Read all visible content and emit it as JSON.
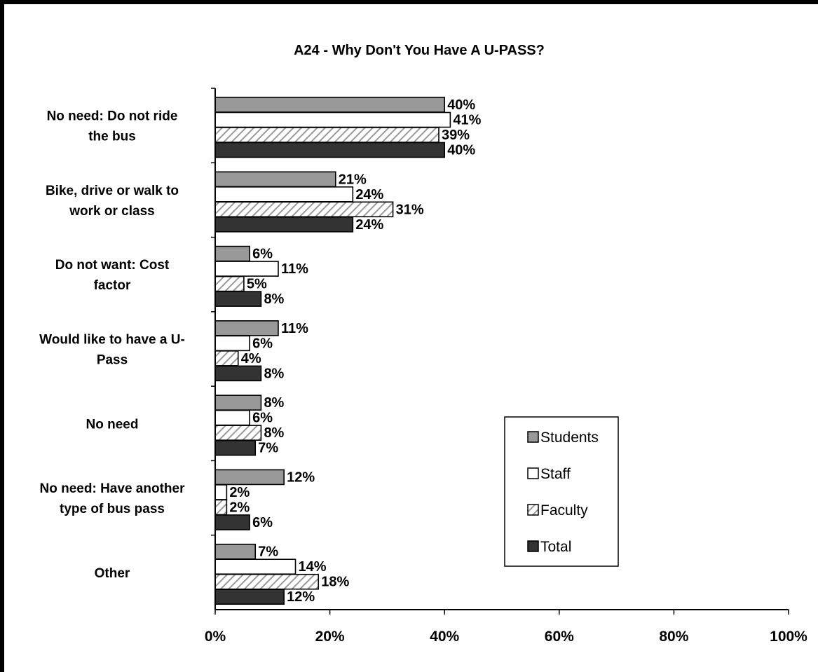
{
  "chart_data": {
    "type": "bar",
    "orientation": "horizontal",
    "title": "A24 - Why Don't You Have A U-PASS?",
    "categories": [
      [
        "No need: Do not ride",
        "the bus"
      ],
      [
        "Bike, drive or walk to",
        "work or class"
      ],
      [
        "Do not want: Cost",
        "factor"
      ],
      [
        "Would like to have a U-",
        "Pass"
      ],
      [
        "No need"
      ],
      [
        "No need: Have another",
        "type of bus pass"
      ],
      [
        "Other"
      ]
    ],
    "series": [
      {
        "name": "Students",
        "values": [
          40,
          21,
          6,
          11,
          8,
          12,
          7
        ],
        "color": "#999999",
        "pattern": "solid"
      },
      {
        "name": "Staff",
        "values": [
          41,
          24,
          11,
          6,
          6,
          2,
          14
        ],
        "color": "#ffffff",
        "pattern": "solid"
      },
      {
        "name": "Faculty",
        "values": [
          39,
          31,
          5,
          4,
          8,
          2,
          18
        ],
        "color": "#ffffff",
        "pattern": "hatch"
      },
      {
        "name": "Total",
        "values": [
          40,
          24,
          8,
          8,
          7,
          6,
          12
        ],
        "color": "#333333",
        "pattern": "solid"
      }
    ],
    "xlim": [
      0,
      100
    ],
    "xticks": [
      "0%",
      "20%",
      "40%",
      "60%",
      "80%",
      "100%"
    ],
    "value_suffix": "%",
    "grid": false,
    "legend_position": "right"
  }
}
